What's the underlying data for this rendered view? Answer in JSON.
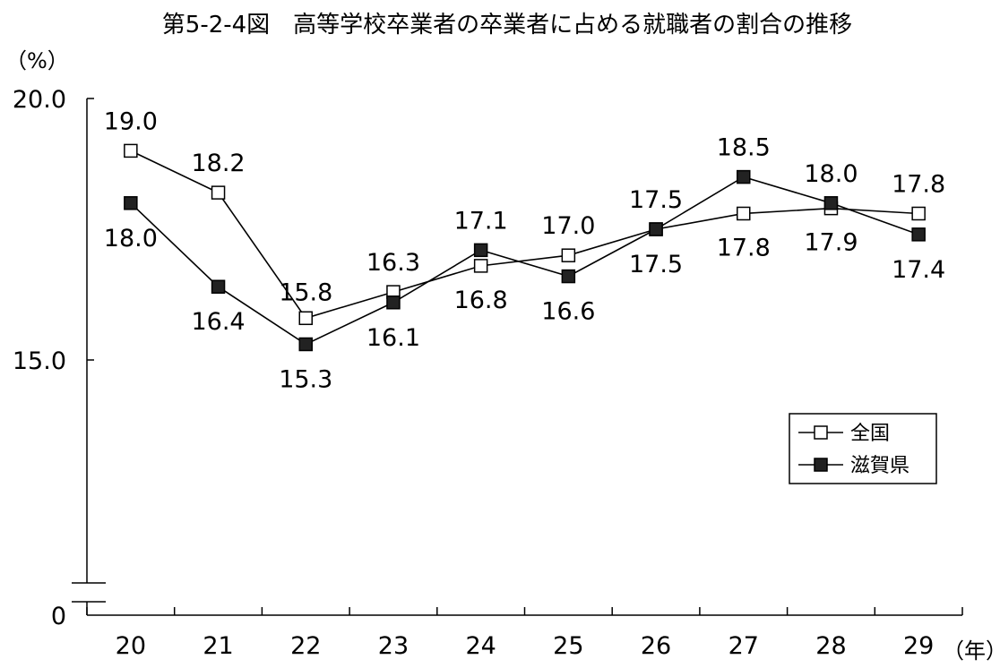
{
  "chart_data": {
    "type": "line",
    "title": "第5-2-4図　高等学校卒業者の卒業者に占める就職者の割合の推移",
    "ylabel": "（%）",
    "xlabel": "（年）",
    "categories": [
      "20",
      "21",
      "22",
      "23",
      "24",
      "25",
      "26",
      "27",
      "28",
      "29"
    ],
    "series": [
      {
        "name": "全国",
        "marker": "hollow-square",
        "color": "#000000",
        "values": [
          19.0,
          18.2,
          15.8,
          16.3,
          16.8,
          17.0,
          17.5,
          17.8,
          17.9,
          17.8
        ]
      },
      {
        "name": "滋賀県",
        "marker": "filled-square",
        "color": "#000000",
        "values": [
          18.0,
          16.4,
          15.3,
          16.1,
          17.1,
          16.6,
          17.5,
          18.5,
          18.0,
          17.4
        ]
      }
    ],
    "y_ticks": [
      "20.0",
      "15.0",
      "0"
    ],
    "ylim": [
      0,
      20.0
    ],
    "axis_break": true,
    "grid": false,
    "legend": "right"
  }
}
